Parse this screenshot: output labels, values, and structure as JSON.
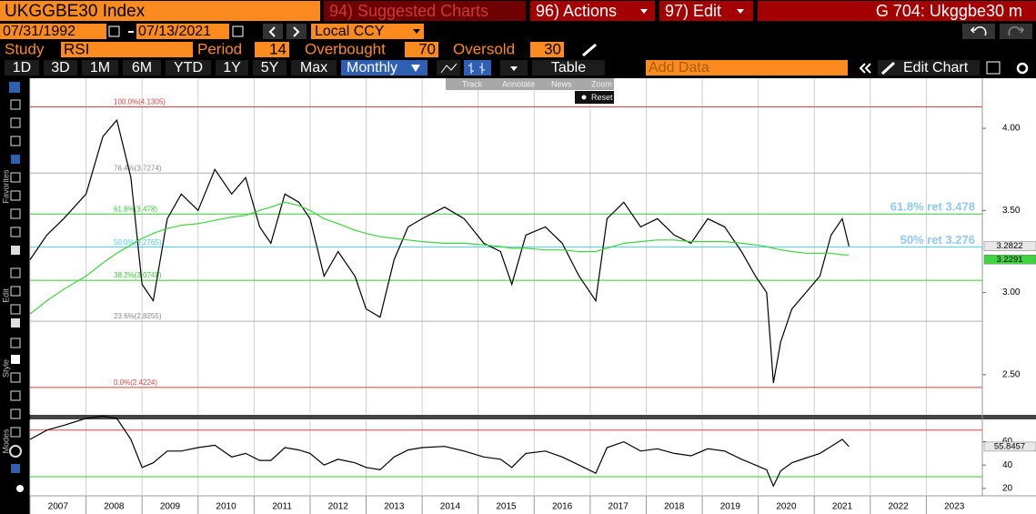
{
  "header": {
    "security": "UKGGBE30 Index",
    "suggested": "94) Suggested Charts",
    "actions": "96) Actions",
    "edit": "97) Edit",
    "page": "G 704: Ukggbe30 m"
  },
  "date_range": {
    "start": "07/31/1992",
    "end": "07/13/2021",
    "currency": "Local CCY"
  },
  "study": {
    "label": "Study",
    "name": "RSI",
    "period_label": "Period",
    "period": 14,
    "overbought_label": "Overbought",
    "overbought": 70,
    "oversold_label": "Oversold",
    "oversold": 30
  },
  "toolbar": {
    "periods": [
      "1D",
      "3D",
      "1M",
      "6M",
      "YTD",
      "1Y",
      "5Y",
      "Max"
    ],
    "frequency": "Monthly",
    "table": "Table",
    "add_data": "Add Data",
    "edit_chart": "Edit Chart"
  },
  "chart_tools": [
    "Track",
    "Annotate",
    "News",
    "Zoom",
    "Reset"
  ],
  "sidebar": [
    "Favorites",
    "Edit",
    "Style",
    "Modes"
  ],
  "chart_data": [
    {
      "type": "line",
      "x": [
        2007.0,
        2007.3,
        2007.6,
        2008.0,
        2008.3,
        2008.55,
        2008.8,
        2009.0,
        2009.2,
        2009.45,
        2009.7,
        2010.0,
        2010.3,
        2010.6,
        2010.85,
        2011.1,
        2011.3,
        2011.55,
        2011.8,
        2012.0,
        2012.25,
        2012.5,
        2012.8,
        2013.0,
        2013.25,
        2013.5,
        2013.75,
        2014.0,
        2014.4,
        2014.75,
        2015.1,
        2015.4,
        2015.6,
        2015.85,
        2016.2,
        2016.5,
        2016.8,
        2017.1,
        2017.3,
        2017.6,
        2017.9,
        2018.2,
        2018.5,
        2018.8,
        2019.1,
        2019.4,
        2019.7,
        2019.95,
        2020.15,
        2020.27,
        2020.4,
        2020.6,
        2020.85,
        2021.1,
        2021.3,
        2021.5,
        2021.62
      ],
      "series": [
        {
          "color": "#000000",
          "values": [
            3.2,
            3.35,
            3.45,
            3.6,
            3.95,
            4.05,
            3.7,
            3.05,
            2.95,
            3.45,
            3.6,
            3.5,
            3.75,
            3.6,
            3.7,
            3.4,
            3.3,
            3.6,
            3.55,
            3.45,
            3.1,
            3.25,
            3.1,
            2.9,
            2.85,
            3.2,
            3.4,
            3.45,
            3.52,
            3.45,
            3.3,
            3.25,
            3.05,
            3.35,
            3.4,
            3.3,
            3.1,
            2.95,
            3.45,
            3.55,
            3.4,
            3.45,
            3.35,
            3.3,
            3.45,
            3.4,
            3.25,
            3.1,
            3.0,
            2.45,
            2.7,
            2.9,
            3.0,
            3.1,
            3.35,
            3.45,
            3.2822
          ]
        },
        {
          "color": "#3fd43f",
          "values": [
            2.87,
            2.95,
            3.02,
            3.1,
            3.18,
            3.24,
            3.29,
            3.33,
            3.36,
            3.39,
            3.41,
            3.42,
            3.44,
            3.46,
            3.47,
            3.5,
            3.52,
            3.55,
            3.53,
            3.5,
            3.45,
            3.42,
            3.38,
            3.36,
            3.34,
            3.33,
            3.32,
            3.31,
            3.3,
            3.3,
            3.29,
            3.28,
            3.27,
            3.27,
            3.26,
            3.26,
            3.25,
            3.25,
            3.27,
            3.3,
            3.31,
            3.32,
            3.32,
            3.31,
            3.31,
            3.31,
            3.3,
            3.29,
            3.28,
            3.27,
            3.26,
            3.25,
            3.24,
            3.24,
            3.24,
            3.23,
            3.2291
          ]
        }
      ],
      "xlim": [
        2007,
        2024
      ],
      "ylim": [
        2.261,
        4.294
      ],
      "yticks": [
        {
          "value": 2.5,
          "label": "2.50"
        },
        {
          "value": 3.0,
          "label": "3.00"
        },
        {
          "value": 3.5,
          "label": "3.50"
        },
        {
          "value": 4.0,
          "label": "4.00"
        }
      ],
      "fib_levels": [
        {
          "label": "100.0%(4.1305)",
          "value": 4.1305,
          "color": "#e04040"
        },
        {
          "label": "76.4%(3.7274)",
          "value": 3.7274,
          "color": "#b0b0b0"
        },
        {
          "label": "61.8%(3.478)",
          "value": 3.478,
          "color": "#33cc33"
        },
        {
          "label": "50.0%(3.2765)",
          "value": 3.2765,
          "color": "#44d0e0"
        },
        {
          "label": "38.2%(3.0749)",
          "value": 3.0749,
          "color": "#33cc33"
        },
        {
          "label": "23.6%(2.8255)",
          "value": 2.8255,
          "color": "#b0b0b0"
        },
        {
          "label": "0.0%(2.4224)",
          "value": 2.4224,
          "color": "#e04040"
        }
      ],
      "annotations": [
        {
          "text": "61.8% ret 3.478",
          "value": 3.478
        },
        {
          "text": "50% ret 3.276",
          "value": 3.276
        }
      ]
    },
    {
      "type": "line",
      "x": [
        2007.0,
        2007.3,
        2007.6,
        2008.0,
        2008.3,
        2008.55,
        2008.8,
        2009.0,
        2009.2,
        2009.45,
        2009.7,
        2010.0,
        2010.3,
        2010.6,
        2010.85,
        2011.1,
        2011.3,
        2011.55,
        2011.8,
        2012.0,
        2012.25,
        2012.5,
        2012.8,
        2013.0,
        2013.25,
        2013.5,
        2013.75,
        2014.0,
        2014.4,
        2014.75,
        2015.1,
        2015.4,
        2015.6,
        2015.85,
        2016.2,
        2016.5,
        2016.8,
        2017.1,
        2017.3,
        2017.6,
        2017.9,
        2018.2,
        2018.5,
        2018.8,
        2019.1,
        2019.4,
        2019.7,
        2019.95,
        2020.15,
        2020.27,
        2020.4,
        2020.6,
        2020.85,
        2021.1,
        2021.3,
        2021.5,
        2021.62
      ],
      "series": [
        {
          "color": "#000000",
          "values": [
            62,
            70,
            74,
            80,
            82,
            80,
            62,
            38,
            42,
            52,
            52,
            55,
            57,
            47,
            50,
            44,
            44,
            55,
            53,
            50,
            40,
            45,
            42,
            38,
            36,
            47,
            53,
            55,
            56,
            52,
            47,
            45,
            38,
            50,
            52,
            47,
            40,
            33,
            55,
            60,
            52,
            54,
            50,
            48,
            54,
            52,
            45,
            40,
            36,
            22,
            35,
            42,
            46,
            50,
            56,
            62,
            55.8457
          ]
        }
      ],
      "xlim": [
        2007,
        2024
      ],
      "ylim": [
        16,
        78.4
      ],
      "yticks": [
        20,
        40,
        60
      ],
      "xticks": [
        {
          "value": 2007,
          "label": "2007"
        },
        {
          "value": 2008,
          "label": "2008"
        },
        {
          "value": 2009,
          "label": "2009"
        },
        {
          "value": 2010,
          "label": "2010"
        },
        {
          "value": 2011,
          "label": "2011"
        },
        {
          "value": 2012,
          "label": "2012"
        },
        {
          "value": 2013,
          "label": "2013"
        },
        {
          "value": 2014,
          "label": "2014"
        },
        {
          "value": 2015,
          "label": "2015"
        },
        {
          "value": 2016,
          "label": "2016"
        },
        {
          "value": 2017,
          "label": "2017"
        },
        {
          "value": 2018,
          "label": "2018"
        },
        {
          "value": 2019,
          "label": "2019"
        },
        {
          "value": 2020,
          "label": "2020"
        },
        {
          "value": 2021,
          "label": "2021"
        },
        {
          "value": 2022,
          "label": "2022"
        },
        {
          "value": 2023,
          "label": "2023"
        }
      ],
      "grid": true
    }
  ]
}
